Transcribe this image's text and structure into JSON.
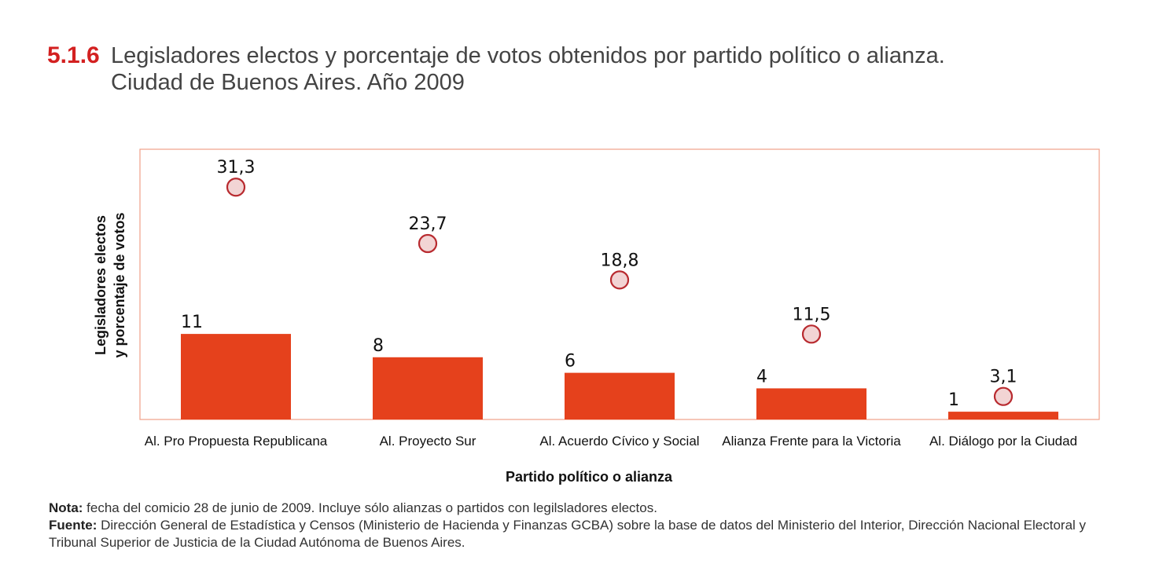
{
  "header": {
    "figure_number": "5.1.6",
    "title_line1": "Legisladores electos y porcentaje de votos obtenidos por partido político o alianza.",
    "title_line2": "Ciudad de Buenos Aires. Año 2009"
  },
  "chart_data": {
    "type": "bar",
    "title": "Legisladores electos y porcentaje de votos obtenidos por partido político o alianza. Ciudad de Buenos Aires. Año 2009",
    "xlabel": "Partido político o alianza",
    "ylabel_line1": "Legisladores electos",
    "ylabel_line2": "y porcentaje de votos",
    "categories": [
      "Al. Pro Propuesta Republicana",
      "Al. Proyecto Sur",
      "Al. Acuerdo Cívico y Social",
      "Alianza Frente para la Victoria",
      "Al. Diálogo por la Ciudad"
    ],
    "series": [
      {
        "values": [
          11,
          8,
          6,
          4,
          1
        ],
        "labels": [
          "11",
          "8",
          "6",
          "4",
          "1"
        ],
        "mark": "bar",
        "color": "#e5411c"
      },
      {
        "values": [
          31.3,
          23.7,
          18.8,
          11.5,
          3.1
        ],
        "labels": [
          "31,3",
          "23,7",
          "18,8",
          "11,5",
          "3,1"
        ],
        "mark": "circle",
        "color": "#f2d4d4",
        "stroke": "#b82a2f"
      }
    ],
    "ylim": [
      0,
      34
    ],
    "grid": false,
    "legend": "none",
    "frame_color": "#f0a088"
  },
  "notes": {
    "nota_label": "Nota:",
    "nota_text": " fecha del comicio 28 de junio de 2009. Incluye sólo alianzas o partidos con legilsladores electos.",
    "fuente_label": "Fuente:",
    "fuente_text": " Dirección General de Estadística y Censos (Ministerio de Hacienda y Finanzas GCBA) sobre la base de datos del Ministerio del Interior, Dirección Nacional Electoral y Tribunal Superior de Justicia de la Ciudad Autónoma de Buenos Aires."
  }
}
